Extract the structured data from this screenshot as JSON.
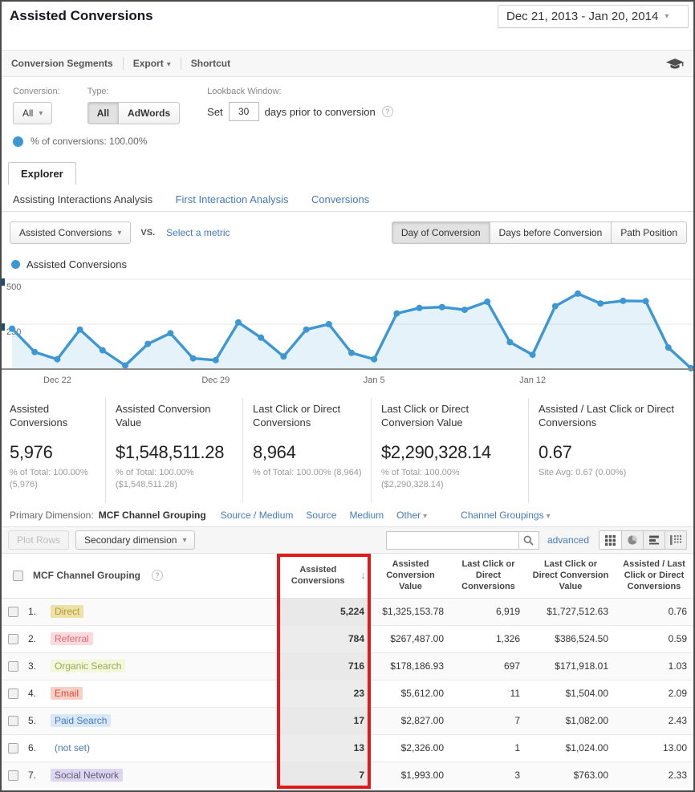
{
  "page": {
    "title": "Assisted Conversions",
    "date_range": "Dec 21, 2013 - Jan 20, 2014"
  },
  "toolbar": {
    "items": [
      "Conversion Segments",
      "Export",
      "Shortcut"
    ]
  },
  "filters": {
    "conversion_label": "Conversion:",
    "conversion_value": "All",
    "type_label": "Type:",
    "type_options": [
      "All",
      "AdWords"
    ],
    "type_active": "All",
    "lookback_label": "Lookback Window:",
    "set_label": "Set",
    "lookback_days": "30",
    "lookback_suffix": "days prior to conversion",
    "pct_conversions": "% of conversions: 100.00%"
  },
  "explorer": {
    "tab_label": "Explorer",
    "subtabs": [
      "Assisting Interactions Analysis",
      "First Interaction Analysis",
      "Conversions"
    ],
    "active_subtab": "Assisting Interactions Analysis"
  },
  "metric_bar": {
    "metric_selector": "Assisted Conversions",
    "vs_label": "VS.",
    "select_metric_label": "Select a metric",
    "view_buttons": [
      "Day of Conversion",
      "Days before Conversion",
      "Path Position"
    ],
    "active_view": "Day of Conversion"
  },
  "chart_data": {
    "type": "line",
    "title": "Assisted Conversions",
    "legend": [
      "Assisted Conversions"
    ],
    "values": [
      225,
      95,
      55,
      220,
      105,
      20,
      140,
      200,
      60,
      50,
      260,
      175,
      70,
      220,
      250,
      90,
      55,
      310,
      340,
      345,
      330,
      375,
      150,
      80,
      350,
      420,
      365,
      380,
      378,
      120,
      5
    ],
    "x_tick_labels": [
      "Dec 22",
      "Dec 29",
      "Jan 5",
      "Jan 12"
    ],
    "x_tick_indices": [
      2,
      9,
      16,
      23
    ],
    "y_ticks": [
      250,
      500
    ],
    "ylim": [
      0,
      500
    ],
    "line_color": "#3c97d3",
    "grid": true,
    "legend_position": "top-left"
  },
  "summary_cards": [
    {
      "title": "Assisted Conversions",
      "value": "5,976",
      "subtext": "% of Total: 100.00% (5,976)"
    },
    {
      "title": "Assisted Conversion Value",
      "value": "$1,548,511.28",
      "subtext": "% of Total: 100.00% ($1,548,511.28)"
    },
    {
      "title": "Last Click or Direct Conversions",
      "value": "8,964",
      "subtext": "% of Total: 100.00% (8,964)"
    },
    {
      "title": "Last Click or Direct Conversion Value",
      "value": "$2,290,328.14",
      "subtext": "% of Total: 100.00% ($2,290,328.14)"
    },
    {
      "title": "Assisted / Last Click or Direct Conversions",
      "value": "0.67",
      "subtext": "Site Avg: 0.67 (0.00%)"
    }
  ],
  "dimension_bar": {
    "label": "Primary Dimension:",
    "active": "MCF Channel Grouping",
    "links": [
      "Source / Medium",
      "Source",
      "Medium"
    ],
    "other_label": "Other",
    "channel_groupings_label": "Channel Groupings"
  },
  "table_controls": {
    "plot_rows_label": "Plot Rows",
    "secondary_dimension_label": "Secondary dimension",
    "search_value": "",
    "advanced_label": "advanced"
  },
  "table": {
    "dimension_header": "MCF Channel Grouping",
    "columns": [
      "Assisted Conversions",
      "Assisted Conversion Value",
      "Last Click or Direct Conversions",
      "Last Click or Direct Conversion Value",
      "Assisted / Last Click or Direct Conversions"
    ],
    "sorted_column": "Assisted Conversions",
    "rows": [
      {
        "rank": "1.",
        "channel": "Direct",
        "values": [
          "5,224",
          "$1,325,153.78",
          "6,919",
          "$1,727,512.63",
          "0.76"
        ],
        "chip_bg": "#ebe1a9",
        "chip_color": "#b49b30"
      },
      {
        "rank": "2.",
        "channel": "Referral",
        "values": [
          "784",
          "$267,487.00",
          "1,326",
          "$386,524.50",
          "0.59"
        ],
        "chip_bg": "#fadade",
        "chip_color": "#df6d6d"
      },
      {
        "rank": "3.",
        "channel": "Organic Search",
        "values": [
          "716",
          "$178,186.93",
          "697",
          "$171,918.01",
          "1.03"
        ],
        "chip_bg": "#f2f8d9",
        "chip_color": "#9aa65a"
      },
      {
        "rank": "4.",
        "channel": "Email",
        "values": [
          "23",
          "$5,612.00",
          "11",
          "$1,504.00",
          "2.09"
        ],
        "chip_bg": "#f8cfc6",
        "chip_color": "#dd4b39"
      },
      {
        "rank": "5.",
        "channel": "Paid Search",
        "values": [
          "17",
          "$2,827.00",
          "7",
          "$1,082.00",
          "2.43"
        ],
        "chip_bg": "#d9e8f7",
        "chip_color": "#4479bd"
      },
      {
        "rank": "6.",
        "channel": "(not set)",
        "values": [
          "13",
          "$2,326.00",
          "1",
          "$1,024.00",
          "13.00"
        ],
        "chip_bg": "",
        "chip_color": "#4479bd"
      },
      {
        "rank": "7.",
        "channel": "Social Network",
        "values": [
          "7",
          "$1,993.00",
          "3",
          "$763.00",
          "2.33"
        ],
        "chip_bg": "#ded6f0",
        "chip_color": "#5b5b77"
      }
    ]
  },
  "colors": {
    "accent_blue": "#3c97d3",
    "link_blue": "#4479bd",
    "highlight_red": "#e01b1b"
  }
}
